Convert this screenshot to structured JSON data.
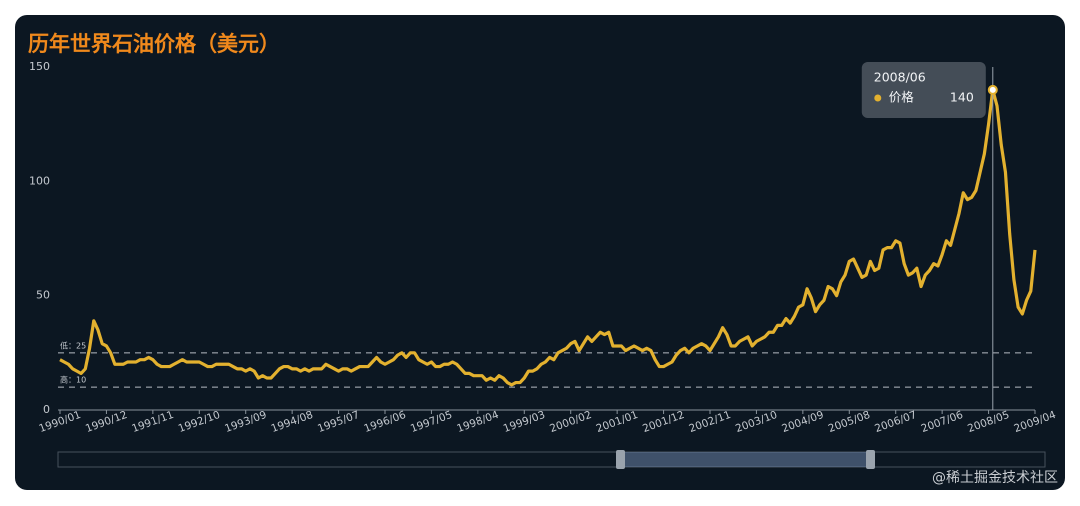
{
  "chart_data": {
    "type": "line",
    "title": "历年世界石油价格（美元）",
    "categories": [
      "1990/01",
      null,
      null,
      null,
      null,
      null,
      null,
      null,
      null,
      null,
      null,
      "1990/12",
      null,
      null,
      null,
      null,
      null,
      null,
      null,
      null,
      null,
      null,
      "1991/11",
      null,
      null,
      null,
      null,
      null,
      null,
      null,
      null,
      null,
      null,
      "1992/10",
      null,
      null,
      null,
      null,
      null,
      null,
      null,
      null,
      null,
      null,
      "1993/09",
      null,
      null,
      null,
      null,
      null,
      null,
      null,
      null,
      null,
      null,
      "1994/08",
      null,
      null,
      null,
      null,
      null,
      null,
      null,
      null,
      null,
      null,
      "1995/07",
      null,
      null,
      null,
      null,
      null,
      null,
      null,
      null,
      null,
      null,
      "1996/06",
      null,
      null,
      null,
      null,
      null,
      null,
      null,
      null,
      null,
      null,
      "1997/05",
      null,
      null,
      null,
      null,
      null,
      null,
      null,
      null,
      null,
      null,
      "1998/04",
      null,
      null,
      null,
      null,
      null,
      null,
      null,
      null,
      null,
      null,
      "1999/03",
      null,
      null,
      null,
      null,
      null,
      null,
      null,
      null,
      null,
      null,
      "2000/02",
      null,
      null,
      null,
      null,
      null,
      null,
      null,
      null,
      null,
      null,
      "2001/01",
      null,
      null,
      null,
      null,
      null,
      null,
      null,
      null,
      null,
      null,
      "2001/12",
      null,
      null,
      null,
      null,
      null,
      null,
      null,
      null,
      null,
      null,
      "2002/11",
      null,
      null,
      null,
      null,
      null,
      null,
      null,
      null,
      null,
      null,
      "2003/10",
      null,
      null,
      null,
      null,
      null,
      null,
      null,
      null,
      null,
      null,
      "2004/09",
      null,
      null,
      null,
      null,
      null,
      null,
      null,
      null,
      null,
      null,
      "2005/08",
      null,
      null,
      null,
      null,
      null,
      null,
      null,
      null,
      null,
      null,
      "2006/07",
      null,
      null,
      null,
      null,
      null,
      null,
      null,
      null,
      null,
      null,
      "2007/06",
      null,
      null,
      null,
      null,
      null,
      null,
      null,
      null,
      null,
      null,
      "2008/05",
      null,
      null,
      null,
      null,
      null,
      null,
      null,
      null,
      null,
      null,
      "2009/04"
    ],
    "series": [
      {
        "name": "价格",
        "color": "#e3b12f",
        "values": [
          22,
          21,
          20,
          18,
          17,
          16,
          18,
          27,
          39,
          35,
          29,
          28,
          25,
          20,
          20,
          20,
          21,
          21,
          21,
          22,
          22,
          23,
          22,
          20,
          19,
          19,
          19,
          20,
          21,
          22,
          21,
          21,
          21,
          21,
          20,
          19,
          19,
          20,
          20,
          20,
          20,
          19,
          18,
          18,
          17,
          18,
          17,
          14,
          15,
          14,
          14,
          16,
          18,
          19,
          19,
          18,
          18,
          17,
          18,
          17,
          18,
          18,
          18,
          20,
          19,
          18,
          17,
          18,
          18,
          17,
          18,
          19,
          19,
          19,
          21,
          23,
          21,
          20,
          21,
          22,
          24,
          25,
          23,
          25,
          25,
          22,
          21,
          20,
          21,
          19,
          19,
          20,
          20,
          21,
          20,
          18,
          16,
          16,
          15,
          15,
          15,
          13,
          14,
          13,
          15,
          14,
          12,
          11,
          12,
          12,
          14,
          17,
          17,
          18,
          20,
          21,
          23,
          22,
          25,
          26,
          27,
          29,
          30,
          26,
          29,
          32,
          30,
          32,
          34,
          33,
          34,
          28,
          28,
          28,
          26,
          27,
          28,
          27,
          26,
          27,
          26,
          22,
          19,
          19,
          20,
          21,
          24,
          26,
          27,
          25,
          27,
          28,
          29,
          28,
          26,
          29,
          32,
          36,
          33,
          28,
          28,
          30,
          31,
          32,
          28,
          30,
          31,
          32,
          34,
          34,
          37,
          37,
          40,
          38,
          41,
          45,
          46,
          53,
          49,
          43,
          46,
          48,
          54,
          53,
          50,
          56,
          59,
          65,
          66,
          62,
          58,
          59,
          65,
          61,
          62,
          70,
          71,
          71,
          74,
          73,
          64,
          59,
          60,
          62,
          54,
          59,
          61,
          64,
          63,
          68,
          74,
          72,
          79,
          86,
          95,
          92,
          93,
          96,
          104,
          112,
          125,
          140,
          133,
          116,
          104,
          77,
          57,
          45,
          42,
          48,
          52,
          70
        ]
      }
    ],
    "ylim": [
      0,
      150
    ],
    "yticks": [
      0,
      50,
      100,
      150
    ],
    "mark_lines": [
      {
        "label": "低：25",
        "value": 25
      },
      {
        "label": "高：10",
        "value": 10
      }
    ],
    "tooltip": {
      "category": "2008/06",
      "value": 140
    },
    "watermark": "@稀土掘金技术社区"
  }
}
